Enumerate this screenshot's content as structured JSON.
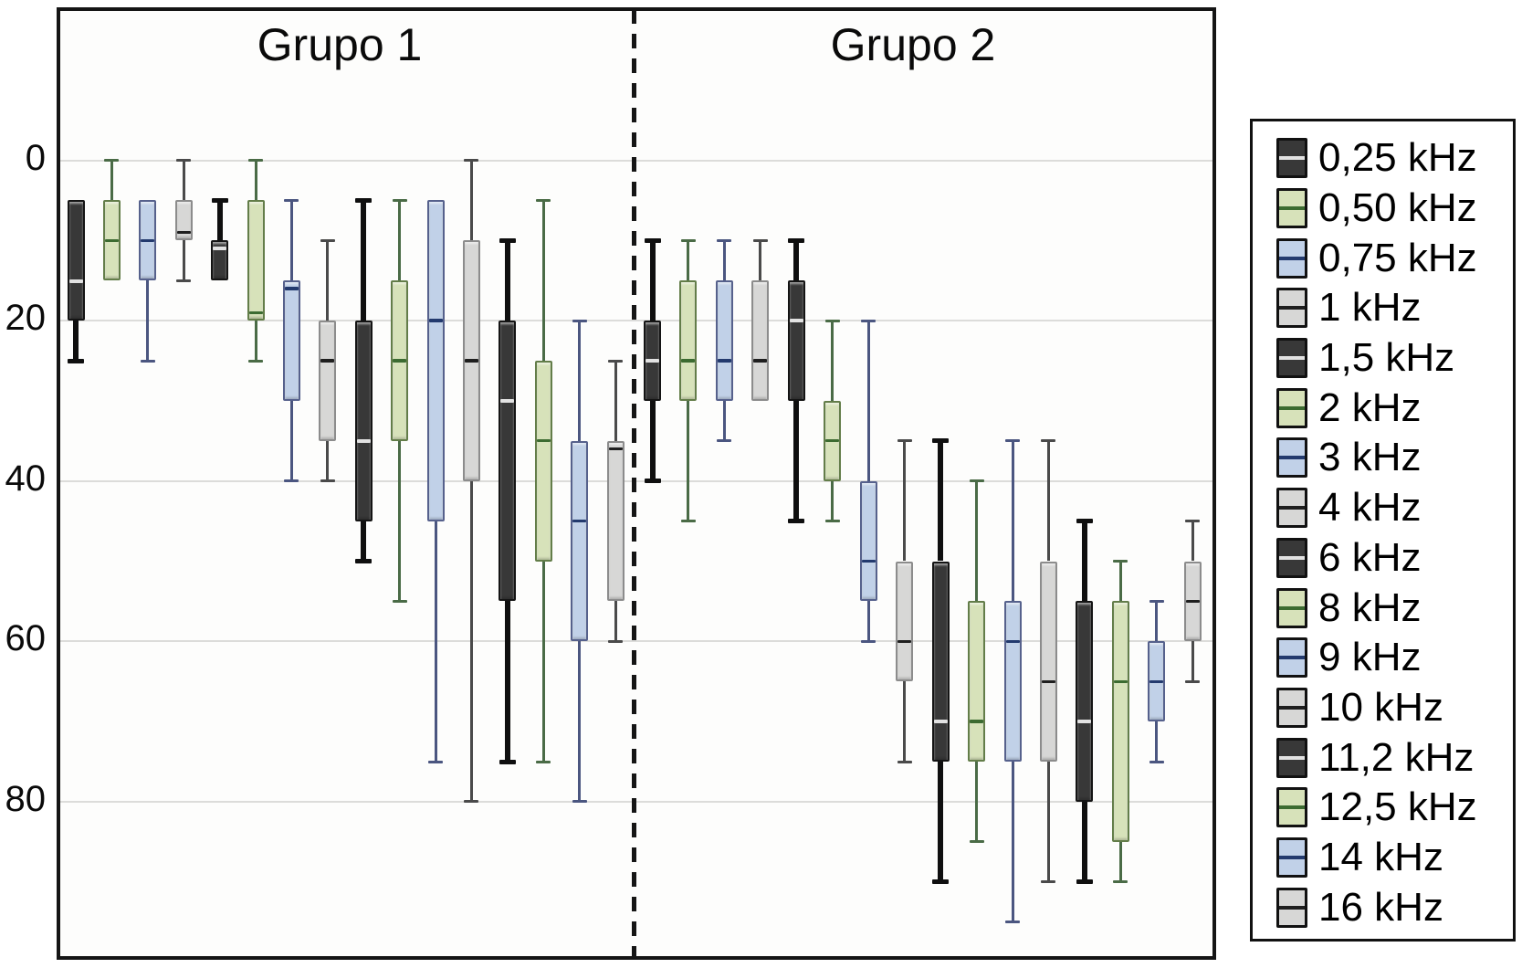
{
  "figure": {
    "group_titles": {
      "group1": "Grupo 1",
      "group2": "Grupo 2"
    }
  },
  "palette": {
    "dark": {
      "fill": "#383838",
      "border": "#141414",
      "median": "#e2e2e2",
      "whisker": "#0f0f0f"
    },
    "green": {
      "fill": "#d7e2ba",
      "border": "#637d49",
      "median": "#3c6b31",
      "whisker": "#4a6b46"
    },
    "blue": {
      "fill": "#c1d1e8",
      "border": "#56618c",
      "median": "#233a6e",
      "whisker": "#4b5680"
    },
    "gray": {
      "fill": "#d7d7d6",
      "border": "#8c8c8c",
      "median": "#1f1f1f",
      "whisker": "#4a4a4a"
    }
  },
  "legend": {
    "items": [
      {
        "label": "0,25 kHz",
        "color": "dark"
      },
      {
        "label": "0,50 kHz",
        "color": "green"
      },
      {
        "label": "0,75 kHz",
        "color": "blue"
      },
      {
        "label": "1 kHz",
        "color": "gray"
      },
      {
        "label": "1,5 kHz",
        "color": "dark"
      },
      {
        "label": "2 kHz",
        "color": "green"
      },
      {
        "label": "3 kHz",
        "color": "blue"
      },
      {
        "label": "4 kHz",
        "color": "gray"
      },
      {
        "label": "6 kHz",
        "color": "dark"
      },
      {
        "label": "8 kHz",
        "color": "green"
      },
      {
        "label": "9 kHz",
        "color": "blue"
      },
      {
        "label": "10 kHz",
        "color": "gray"
      },
      {
        "label": "11,2 kHz",
        "color": "dark"
      },
      {
        "label": "12,5 kHz",
        "color": "green"
      },
      {
        "label": "14 kHz",
        "color": "blue"
      },
      {
        "label": "16 kHz",
        "color": "gray"
      }
    ]
  },
  "chart_data": {
    "type": "boxplot",
    "title": "",
    "xlabel": "",
    "ylabel": "",
    "y_axis": {
      "ticks": [
        0,
        20,
        40,
        60,
        80
      ],
      "min": -19,
      "max": 100,
      "increases_downward": true,
      "grid": true
    },
    "series_colors_cycle": [
      "dark",
      "green",
      "blue",
      "gray"
    ],
    "frequencies": [
      "0,25 kHz",
      "0,50 kHz",
      "0,75 kHz",
      "1 kHz",
      "1,5 kHz",
      "2 kHz",
      "3 kHz",
      "4 kHz",
      "6 kHz",
      "8 kHz",
      "9 kHz",
      "10 kHz",
      "11,2 kHz",
      "12,5 kHz",
      "14 kHz",
      "16 kHz"
    ],
    "groups": [
      {
        "name": "Grupo 1",
        "boxes": [
          {
            "freq": "0,25 kHz",
            "min": 5,
            "q1": 5,
            "median": 15,
            "q3": 20,
            "max": 25
          },
          {
            "freq": "0,50 kHz",
            "min": 0,
            "q1": 5,
            "median": 10,
            "q3": 15,
            "max": 15
          },
          {
            "freq": "0,75 kHz",
            "min": 5,
            "q1": 5,
            "median": 10,
            "q3": 15,
            "max": 25
          },
          {
            "freq": "1 kHz",
            "min": 0,
            "q1": 5,
            "median": 9,
            "q3": 10,
            "max": 15
          },
          {
            "freq": "1,5 kHz",
            "min": 5,
            "q1": 10,
            "median": 11,
            "q3": 15,
            "max": 15
          },
          {
            "freq": "2 kHz",
            "min": 0,
            "q1": 5,
            "median": 19,
            "q3": 20,
            "max": 25
          },
          {
            "freq": "3 kHz",
            "min": 5,
            "q1": 15,
            "median": 16,
            "q3": 30,
            "max": 40
          },
          {
            "freq": "4 kHz",
            "min": 10,
            "q1": 20,
            "median": 25,
            "q3": 35,
            "max": 40
          },
          {
            "freq": "6 kHz",
            "min": 5,
            "q1": 20,
            "median": 35,
            "q3": 45,
            "max": 50
          },
          {
            "freq": "8 kHz",
            "min": 5,
            "q1": 15,
            "median": 25,
            "q3": 35,
            "max": 55
          },
          {
            "freq": "9 kHz",
            "min": 5,
            "q1": 5,
            "median": 20,
            "q3": 45,
            "max": 75
          },
          {
            "freq": "10 kHz",
            "min": 0,
            "q1": 10,
            "median": 25,
            "q3": 40,
            "max": 80
          },
          {
            "freq": "11,2 kHz",
            "min": 10,
            "q1": 20,
            "median": 30,
            "q3": 55,
            "max": 75
          },
          {
            "freq": "12,5 kHz",
            "min": 5,
            "q1": 25,
            "median": 35,
            "q3": 50,
            "max": 75
          },
          {
            "freq": "14 kHz",
            "min": 20,
            "q1": 35,
            "median": 45,
            "q3": 60,
            "max": 80
          },
          {
            "freq": "16 kHz",
            "min": 25,
            "q1": 35,
            "median": 36,
            "q3": 55,
            "max": 60
          }
        ]
      },
      {
        "name": "Grupo 2",
        "boxes": [
          {
            "freq": "0,25 kHz",
            "min": 10,
            "q1": 20,
            "median": 25,
            "q3": 30,
            "max": 40
          },
          {
            "freq": "0,50 kHz",
            "min": 10,
            "q1": 15,
            "median": 25,
            "q3": 30,
            "max": 45
          },
          {
            "freq": "0,75 kHz",
            "min": 10,
            "q1": 15,
            "median": 25,
            "q3": 30,
            "max": 35
          },
          {
            "freq": "1 kHz",
            "min": 10,
            "q1": 15,
            "median": 25,
            "q3": 30,
            "max": 30
          },
          {
            "freq": "1,5 kHz",
            "min": 10,
            "q1": 15,
            "median": 20,
            "q3": 30,
            "max": 45
          },
          {
            "freq": "2 kHz",
            "min": 20,
            "q1": 30,
            "median": 35,
            "q3": 40,
            "max": 45
          },
          {
            "freq": "3 kHz",
            "min": 20,
            "q1": 40,
            "median": 50,
            "q3": 55,
            "max": 60
          },
          {
            "freq": "4 kHz",
            "min": 35,
            "q1": 50,
            "median": 60,
            "q3": 65,
            "max": 75
          },
          {
            "freq": "6 kHz",
            "min": 35,
            "q1": 50,
            "median": 70,
            "q3": 75,
            "max": 90
          },
          {
            "freq": "8 kHz",
            "min": 40,
            "q1": 55,
            "median": 70,
            "q3": 75,
            "max": 85
          },
          {
            "freq": "9 kHz",
            "min": 35,
            "q1": 55,
            "median": 60,
            "q3": 75,
            "max": 95
          },
          {
            "freq": "10 kHz",
            "min": 35,
            "q1": 50,
            "median": 65,
            "q3": 75,
            "max": 90
          },
          {
            "freq": "11,2 kHz",
            "min": 45,
            "q1": 55,
            "median": 70,
            "q3": 80,
            "max": 90
          },
          {
            "freq": "12,5 kHz",
            "min": 50,
            "q1": 55,
            "median": 65,
            "q3": 85,
            "max": 90
          },
          {
            "freq": "14 kHz",
            "min": 55,
            "q1": 60,
            "median": 65,
            "q3": 70,
            "max": 75
          },
          {
            "freq": "16 kHz",
            "min": 45,
            "q1": 50,
            "median": 55,
            "q3": 60,
            "max": 65
          }
        ]
      }
    ]
  }
}
